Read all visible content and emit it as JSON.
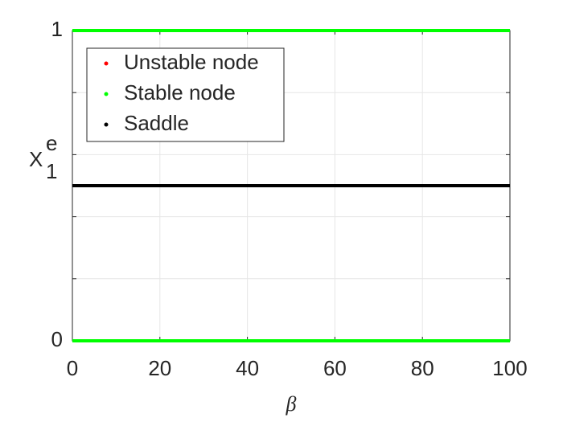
{
  "chart_data": {
    "type": "line",
    "xlabel": "β",
    "ylabel": {
      "base": "X",
      "sup": "e",
      "sub": "1"
    },
    "xlim": [
      0,
      100
    ],
    "xticks": [
      0,
      20,
      40,
      60,
      80,
      100
    ],
    "ylim": [
      0,
      1
    ],
    "yticks": [
      0,
      1
    ],
    "yminorticks": [
      0.2,
      0.4,
      0.6,
      0.8
    ],
    "grid": true,
    "legend": "upper left",
    "series": [
      {
        "name": "Unstable node",
        "color": "#ff0000",
        "x": [],
        "values": []
      },
      {
        "name": "Stable node",
        "color": "#00ff00",
        "x": [
          0,
          100,
          null,
          0,
          100
        ],
        "values": [
          0,
          0,
          null,
          1,
          1
        ]
      },
      {
        "name": "Saddle",
        "color": "#000000",
        "x": [
          0,
          100
        ],
        "values": [
          0.5,
          0.5
        ]
      }
    ]
  }
}
